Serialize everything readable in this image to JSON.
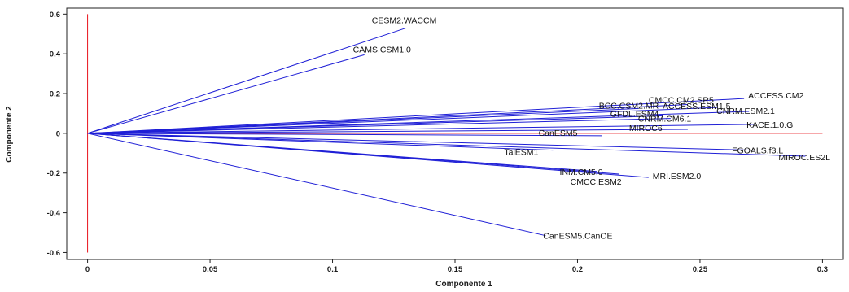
{
  "chart_data": {
    "type": "biplot",
    "xlabel": "Componente 1",
    "ylabel": "Componente 2",
    "xlim": [
      -0.0085,
      0.3085
    ],
    "ylim": [
      -0.635,
      0.63
    ],
    "xticks": [
      0,
      0.05,
      0.1,
      0.15,
      0.2,
      0.25,
      0.3
    ],
    "xtick_labels": [
      "0",
      "0.05",
      "0.1",
      "0.15",
      "0.2",
      "0.25",
      "0.3"
    ],
    "yticks": [
      -0.6,
      -0.4,
      -0.2,
      0,
      0.2,
      0.4,
      0.6
    ],
    "ytick_labels": [
      "-0.6",
      "-0.4",
      "-0.2",
      "0",
      "0.2",
      "0.4",
      "0.6"
    ],
    "grid": false,
    "colors": {
      "vector": "#1f1fd6",
      "reference": "#e8141c",
      "axis": "#222222"
    },
    "reference_lines": {
      "vertical_x": 0,
      "vertical_y_range": [
        -0.6,
        0.6
      ],
      "horizontal_y": 0,
      "horizontal_x_range": [
        0,
        0.3
      ]
    },
    "vectors": [
      {
        "name": "CESM2.WACCM",
        "x": 0.13,
        "y": 0.53
      },
      {
        "name": "CAMS.CSM1.0",
        "x": 0.113,
        "y": 0.395
      },
      {
        "name": "CMCC.CM2.SR5",
        "x": 0.245,
        "y": 0.145
      },
      {
        "name": "BCC.CSM2.MR",
        "x": 0.225,
        "y": 0.125
      },
      {
        "name": "ACCESS.CM2",
        "x": 0.268,
        "y": 0.175
      },
      {
        "name": "ACCESS.ESM1.5",
        "x": 0.257,
        "y": 0.13
      },
      {
        "name": "CNRM.ESM2.1",
        "x": 0.27,
        "y": 0.11
      },
      {
        "name": "GFDL.ESM4",
        "x": 0.235,
        "y": 0.088
      },
      {
        "name": "CNRM.CM6.1",
        "x": 0.238,
        "y": 0.075
      },
      {
        "name": "KACE.1.0.G",
        "x": 0.272,
        "y": 0.045
      },
      {
        "name": "MIROC6",
        "x": 0.245,
        "y": 0.02
      },
      {
        "name": "CanESM5",
        "x": 0.21,
        "y": -0.012
      },
      {
        "name": "FGOALS.f3.L",
        "x": 0.272,
        "y": -0.085
      },
      {
        "name": "MIROC.ES2L",
        "x": 0.293,
        "y": -0.115
      },
      {
        "name": "TaiESM1",
        "x": 0.19,
        "y": -0.085
      },
      {
        "name": "INM.CM5.0",
        "x": 0.208,
        "y": -0.192
      },
      {
        "name": "MRI.ESM2.0",
        "x": 0.229,
        "y": -0.222
      },
      {
        "name": "CMCC.ESM2",
        "x": 0.217,
        "y": -0.205
      },
      {
        "name": "CanESM5.CanOE",
        "x": 0.187,
        "y": -0.515
      }
    ]
  }
}
